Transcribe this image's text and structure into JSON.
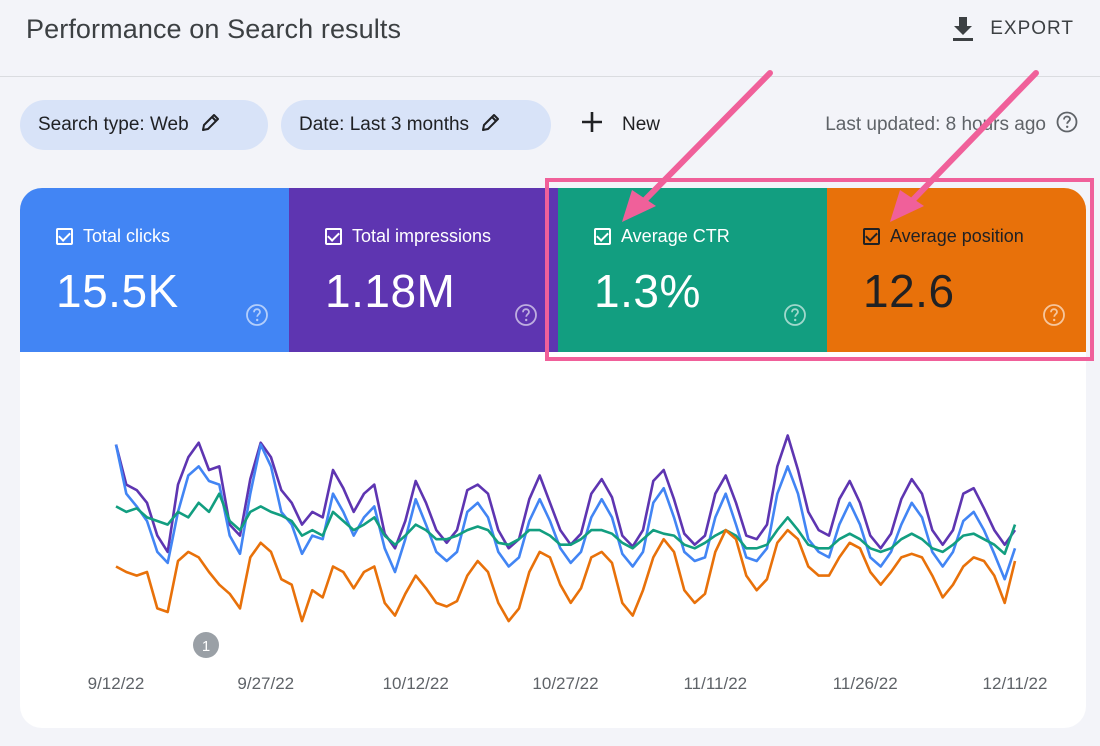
{
  "header": {
    "title": "Performance on Search results",
    "export_label": "EXPORT",
    "export_icon": "download-icon"
  },
  "filters": {
    "search_type": "Search type: Web",
    "date": "Date: Last 3 months",
    "new_label": "New",
    "last_updated": "Last updated: 8 hours ago"
  },
  "metrics": [
    {
      "label": "Total clicks",
      "value": "15.5K",
      "color": "#4285f4"
    },
    {
      "label": "Total impressions",
      "value": "1.18M",
      "color": "#5e35b1"
    },
    {
      "label": "Average CTR",
      "value": "1.3%",
      "color": "#129e80"
    },
    {
      "label": "Average position",
      "value": "12.6",
      "color": "#e8710a"
    }
  ],
  "colors": {
    "highlight": "#f0609a",
    "chip_bg": "#d8e3f8"
  },
  "chart_data": {
    "type": "line",
    "x_labels": [
      "9/12/22",
      "9/27/22",
      "10/12/22",
      "10/27/22",
      "11/11/22",
      "11/26/22",
      "12/11/22"
    ],
    "annotation": "1",
    "series": [
      {
        "color": "#5e35b1",
        "values": [
          0.92,
          0.7,
          0.67,
          0.6,
          0.42,
          0.33,
          0.7,
          0.85,
          0.93,
          0.78,
          0.8,
          0.48,
          0.42,
          0.73,
          0.93,
          0.85,
          0.67,
          0.6,
          0.48,
          0.55,
          0.52,
          0.78,
          0.68,
          0.55,
          0.65,
          0.7,
          0.43,
          0.35,
          0.5,
          0.72,
          0.6,
          0.45,
          0.38,
          0.45,
          0.67,
          0.7,
          0.65,
          0.45,
          0.35,
          0.4,
          0.62,
          0.75,
          0.6,
          0.45,
          0.37,
          0.43,
          0.65,
          0.73,
          0.63,
          0.42,
          0.36,
          0.45,
          0.72,
          0.78,
          0.62,
          0.43,
          0.37,
          0.42,
          0.65,
          0.75,
          0.6,
          0.42,
          0.4,
          0.48,
          0.8,
          0.97,
          0.78,
          0.55,
          0.45,
          0.42,
          0.62,
          0.72,
          0.6,
          0.42,
          0.35,
          0.43,
          0.62,
          0.73,
          0.65,
          0.45,
          0.37,
          0.45,
          0.65,
          0.68,
          0.57,
          0.45,
          0.37,
          0.45
        ]
      },
      {
        "color": "#4285f4",
        "values": [
          0.92,
          0.65,
          0.58,
          0.5,
          0.33,
          0.27,
          0.55,
          0.75,
          0.8,
          0.72,
          0.7,
          0.42,
          0.32,
          0.65,
          0.92,
          0.8,
          0.55,
          0.48,
          0.32,
          0.42,
          0.4,
          0.65,
          0.55,
          0.42,
          0.52,
          0.58,
          0.35,
          0.22,
          0.4,
          0.62,
          0.48,
          0.33,
          0.28,
          0.33,
          0.55,
          0.6,
          0.52,
          0.33,
          0.25,
          0.3,
          0.5,
          0.62,
          0.5,
          0.35,
          0.27,
          0.33,
          0.52,
          0.62,
          0.52,
          0.32,
          0.25,
          0.33,
          0.6,
          0.68,
          0.52,
          0.33,
          0.28,
          0.3,
          0.52,
          0.65,
          0.48,
          0.3,
          0.28,
          0.35,
          0.65,
          0.8,
          0.65,
          0.4,
          0.33,
          0.3,
          0.48,
          0.6,
          0.48,
          0.3,
          0.25,
          0.33,
          0.48,
          0.6,
          0.52,
          0.33,
          0.25,
          0.33,
          0.5,
          0.55,
          0.45,
          0.32,
          0.18,
          0.35
        ]
      },
      {
        "color": "#129e80",
        "values": [
          0.58,
          0.55,
          0.57,
          0.52,
          0.5,
          0.48,
          0.55,
          0.52,
          0.6,
          0.55,
          0.65,
          0.5,
          0.45,
          0.55,
          0.58,
          0.55,
          0.53,
          0.5,
          0.42,
          0.45,
          0.42,
          0.55,
          0.5,
          0.45,
          0.48,
          0.52,
          0.42,
          0.37,
          0.42,
          0.48,
          0.45,
          0.4,
          0.4,
          0.42,
          0.45,
          0.47,
          0.45,
          0.38,
          0.37,
          0.4,
          0.45,
          0.45,
          0.42,
          0.37,
          0.37,
          0.4,
          0.45,
          0.45,
          0.43,
          0.38,
          0.35,
          0.4,
          0.45,
          0.43,
          0.42,
          0.37,
          0.35,
          0.38,
          0.42,
          0.45,
          0.42,
          0.35,
          0.35,
          0.37,
          0.45,
          0.52,
          0.45,
          0.37,
          0.35,
          0.35,
          0.4,
          0.43,
          0.4,
          0.35,
          0.33,
          0.35,
          0.4,
          0.43,
          0.4,
          0.35,
          0.33,
          0.37,
          0.42,
          0.43,
          0.4,
          0.37,
          0.32,
          0.48
        ]
      },
      {
        "color": "#e8710a",
        "values": [
          0.25,
          0.22,
          0.2,
          0.22,
          0.02,
          0.0,
          0.28,
          0.33,
          0.3,
          0.22,
          0.15,
          0.1,
          0.02,
          0.3,
          0.38,
          0.33,
          0.18,
          0.15,
          -0.05,
          0.12,
          0.08,
          0.25,
          0.22,
          0.13,
          0.22,
          0.25,
          0.05,
          -0.02,
          0.1,
          0.2,
          0.13,
          0.05,
          0.03,
          0.06,
          0.2,
          0.28,
          0.22,
          0.05,
          -0.05,
          0.02,
          0.22,
          0.33,
          0.3,
          0.15,
          0.05,
          0.13,
          0.3,
          0.33,
          0.27,
          0.05,
          -0.02,
          0.12,
          0.3,
          0.4,
          0.33,
          0.12,
          0.05,
          0.1,
          0.33,
          0.45,
          0.4,
          0.2,
          0.12,
          0.18,
          0.38,
          0.45,
          0.4,
          0.25,
          0.2,
          0.2,
          0.3,
          0.38,
          0.35,
          0.22,
          0.15,
          0.22,
          0.3,
          0.32,
          0.3,
          0.2,
          0.08,
          0.15,
          0.25,
          0.3,
          0.28,
          0.2,
          0.05,
          0.28
        ]
      }
    ]
  }
}
